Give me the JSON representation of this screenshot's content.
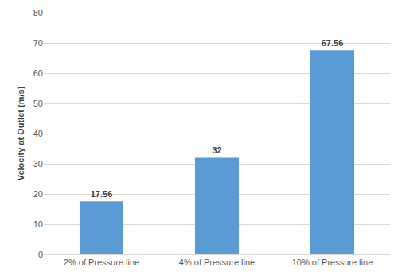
{
  "chart_data": {
    "type": "bar",
    "categories": [
      "2% of Pressure line",
      "4% of Pressure line",
      "10% of Pressure line"
    ],
    "values": [
      17.56,
      32,
      67.56
    ],
    "color": "#5b9bd5",
    "y_label": "Velocity at Outlet (m/s)",
    "ylim": [
      0,
      80
    ],
    "yticks": [
      0,
      10,
      20,
      30,
      40,
      50,
      60,
      70,
      80
    ],
    "grid": true,
    "data_labels": true
  }
}
